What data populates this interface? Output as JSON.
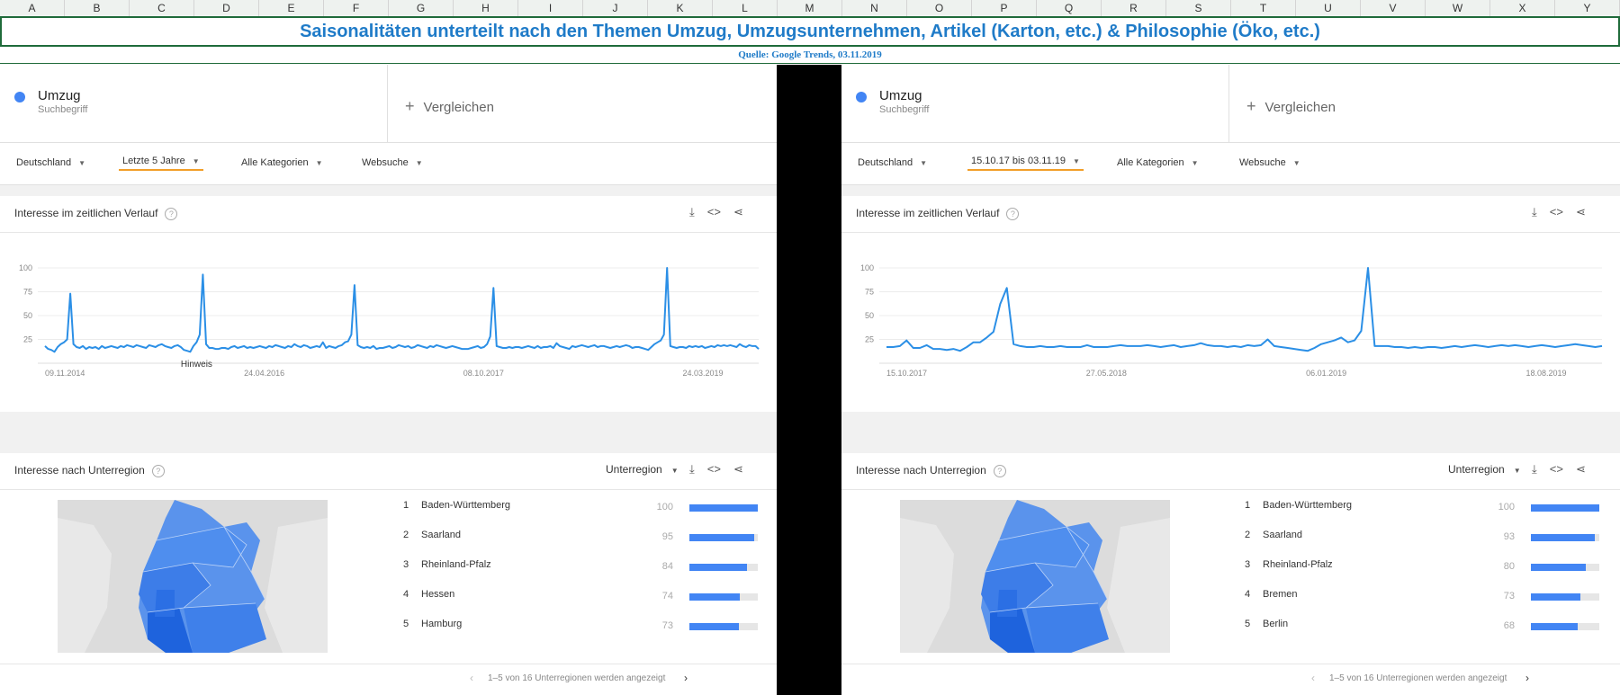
{
  "columns": [
    "A",
    "B",
    "C",
    "D",
    "E",
    "F",
    "G",
    "H",
    "I",
    "J",
    "K",
    "L",
    "M",
    "N",
    "O",
    "P",
    "Q",
    "R",
    "S",
    "T",
    "U",
    "V",
    "W",
    "X",
    "Y"
  ],
  "title": "Saisonalitäten unterteilt nach den Themen Umzug, Umzugsunternehmen, Artikel (Karton, etc.) & Philosophie (Öko, etc.)",
  "source": "Quelle: Google Trends, 03.11.2019",
  "colors": {
    "accent": "#4285f4",
    "title": "#1f7bc8",
    "line": "#2b8fe6",
    "highlight": "#f29e27"
  },
  "left": {
    "term": "Umzug",
    "term_sub": "Suchbegriff",
    "compare": "Vergleichen",
    "filters": [
      "Deutschland",
      "Letzte 5 Jahre",
      "Alle Kategorien",
      "Websuche"
    ],
    "interest_title": "Interesse im zeitlichen Verlauf",
    "region_title": "Interesse nach Unterregion",
    "region_select": "Unterregion",
    "annotation": "Hinweis",
    "regions": [
      {
        "rank": "1",
        "name": "Baden-Württemberg",
        "value": 100
      },
      {
        "rank": "2",
        "name": "Saarland",
        "value": 95
      },
      {
        "rank": "3",
        "name": "Rheinland-Pfalz",
        "value": 84
      },
      {
        "rank": "4",
        "name": "Hessen",
        "value": 74
      },
      {
        "rank": "5",
        "name": "Hamburg",
        "value": 73
      }
    ],
    "pager": "1–5 von 16 Unterregionen werden angezeigt"
  },
  "right": {
    "term": "Umzug",
    "term_sub": "Suchbegriff",
    "compare": "Vergleichen",
    "filters": [
      "Deutschland",
      "15.10.17 bis 03.11.19",
      "Alle Kategorien",
      "Websuche"
    ],
    "interest_title": "Interesse im zeitlichen Verlauf",
    "region_title": "Interesse nach Unterregion",
    "region_select": "Unterregion",
    "regions": [
      {
        "rank": "1",
        "name": "Baden-Württemberg",
        "value": 100
      },
      {
        "rank": "2",
        "name": "Saarland",
        "value": 93
      },
      {
        "rank": "3",
        "name": "Rheinland-Pfalz",
        "value": 80
      },
      {
        "rank": "4",
        "name": "Bremen",
        "value": 73
      },
      {
        "rank": "5",
        "name": "Berlin",
        "value": 68
      }
    ],
    "pager": "1–5 von 16 Unterregionen werden angezeigt"
  },
  "chart_data": [
    {
      "type": "line",
      "title": "Interesse im zeitlichen Verlauf",
      "yticks": [
        25,
        50,
        75,
        100
      ],
      "ylim": [
        0,
        100
      ],
      "xticklabels": [
        "09.11.2014",
        "24.04.2016",
        "08.10.2017",
        "24.03.2019"
      ],
      "series": [
        {
          "values": [
            18,
            15,
            14,
            12,
            17,
            20,
            22,
            25,
            73,
            20,
            17,
            16,
            18,
            15,
            17,
            16,
            17,
            15,
            18,
            16,
            17,
            18,
            17,
            16,
            18,
            17,
            19,
            18,
            17,
            19,
            18,
            17,
            16,
            19,
            18,
            17,
            19,
            20,
            18,
            17,
            16,
            18,
            19,
            17,
            14,
            13,
            12,
            18,
            22,
            30,
            93,
            20,
            16,
            16,
            15,
            15,
            16,
            16,
            15,
            17,
            18,
            16,
            17,
            18,
            16,
            17,
            16,
            17,
            18,
            17,
            16,
            18,
            17,
            19,
            18,
            17,
            16,
            18,
            17,
            20,
            18,
            17,
            19,
            18,
            16,
            17,
            18,
            17,
            22,
            16,
            18,
            17,
            16,
            18,
            19,
            22,
            23,
            30,
            82,
            19,
            17,
            16,
            17,
            16,
            18,
            15,
            16,
            16,
            17,
            18,
            16,
            17,
            19,
            18,
            17,
            18,
            16,
            17,
            19,
            18,
            17,
            16,
            18,
            17,
            19,
            18,
            17,
            16,
            17,
            18,
            17,
            16,
            15,
            15,
            15,
            16,
            17,
            18,
            16,
            17,
            20,
            28,
            79,
            18,
            17,
            16,
            16,
            17,
            16,
            17,
            17,
            16,
            17,
            18,
            17,
            16,
            18,
            16,
            17,
            17,
            18,
            16,
            21,
            18,
            17,
            16,
            15,
            18,
            17,
            18,
            19,
            18,
            17,
            18,
            19,
            17,
            18,
            18,
            17,
            16,
            17,
            18,
            17,
            18,
            19,
            18,
            16,
            17,
            17,
            16,
            15,
            14,
            17,
            20,
            22,
            24,
            30,
            100,
            18,
            17,
            16,
            17,
            17,
            16,
            18,
            17,
            18,
            17,
            18,
            16,
            17,
            18,
            17,
            19,
            18,
            19,
            18,
            19,
            18,
            17,
            20,
            18,
            17,
            19,
            18,
            18,
            15
          ]
        }
      ]
    },
    {
      "type": "line",
      "title": "Interesse im zeitlichen Verlauf",
      "yticks": [
        25,
        50,
        75,
        100
      ],
      "ylim": [
        0,
        100
      ],
      "xticklabels": [
        "15.10.2017",
        "27.05.2018",
        "06.01.2019",
        "18.08.2019"
      ],
      "series": [
        {
          "values": [
            17,
            17,
            18,
            24,
            16,
            16,
            19,
            15,
            15,
            14,
            15,
            13,
            17,
            22,
            22,
            27,
            33,
            62,
            79,
            20,
            18,
            17,
            17,
            18,
            17,
            17,
            18,
            17,
            17,
            17,
            19,
            17,
            17,
            17,
            18,
            19,
            18,
            18,
            18,
            19,
            18,
            17,
            18,
            19,
            17,
            18,
            19,
            21,
            19,
            18,
            18,
            17,
            18,
            17,
            19,
            18,
            19,
            25,
            18,
            17,
            16,
            15,
            14,
            13,
            16,
            20,
            22,
            24,
            27,
            22,
            24,
            34,
            100,
            18,
            18,
            18,
            17,
            17,
            16,
            17,
            16,
            17,
            17,
            16,
            17,
            18,
            17,
            18,
            19,
            18,
            17,
            18,
            19,
            18,
            19,
            18,
            17,
            18,
            19,
            18,
            17,
            18,
            19,
            20,
            19,
            18,
            17,
            18
          ]
        }
      ]
    }
  ]
}
